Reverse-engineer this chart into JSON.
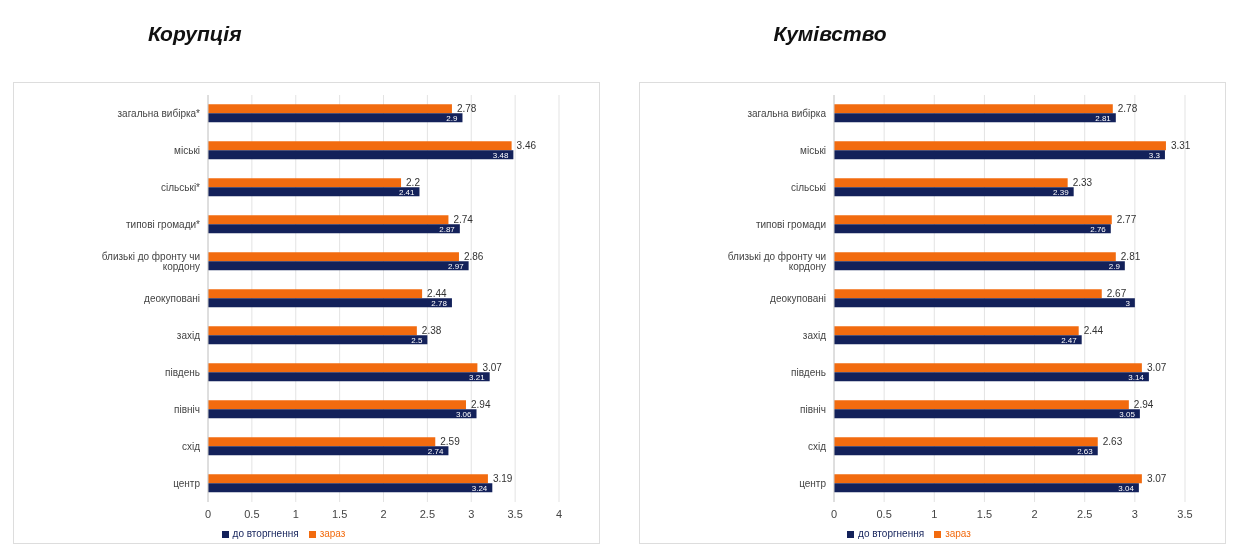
{
  "chart_data": [
    {
      "type": "bar",
      "orientation": "horizontal",
      "title": "Корупція",
      "categories": [
        "загальна вибірка*",
        "міські",
        "сільські*",
        "типові громади*",
        "близькі до фронту чи кордону",
        "деокуповані",
        "захід",
        "південь",
        "північ",
        "схід",
        "центр"
      ],
      "series": [
        {
          "name": "зараз",
          "color": "#f26b0f",
          "values": [
            2.78,
            3.46,
            2.2,
            2.74,
            2.86,
            2.44,
            2.38,
            3.07,
            2.94,
            2.59,
            3.19
          ]
        },
        {
          "name": "до вторгнення",
          "color": "#13215a",
          "values": [
            2.9,
            3.48,
            2.41,
            2.87,
            2.97,
            2.78,
            2.5,
            3.21,
            3.06,
            2.74,
            3.24
          ]
        }
      ],
      "xlim": [
        0,
        4
      ],
      "xticks": [
        0,
        0.5,
        1,
        1.5,
        2,
        2.5,
        3,
        3.5,
        4
      ],
      "grid": "x",
      "legend": "bottom",
      "data_labels": true
    },
    {
      "type": "bar",
      "orientation": "horizontal",
      "title": "Кумівство",
      "categories": [
        "загальна вибірка",
        "міські",
        "сільські",
        "типові громади",
        "близькі до фронту чи кордону",
        "деокуповані",
        "захід",
        "південь",
        "північ",
        "схід",
        "центр"
      ],
      "series": [
        {
          "name": "зараз",
          "color": "#f26b0f",
          "values": [
            2.78,
            3.31,
            2.33,
            2.77,
            2.81,
            2.67,
            2.44,
            3.07,
            2.94,
            2.63,
            3.07
          ]
        },
        {
          "name": "до вторгнення",
          "color": "#13215a",
          "values": [
            2.81,
            3.3,
            2.39,
            2.76,
            2.9,
            3,
            2.47,
            3.14,
            3.05,
            2.63,
            3.04
          ]
        }
      ],
      "xlim": [
        0,
        3.5
      ],
      "xticks": [
        0,
        0.5,
        1,
        1.5,
        2,
        2.5,
        3,
        3.5
      ],
      "grid": "x",
      "legend": "bottom",
      "data_labels": true
    }
  ]
}
